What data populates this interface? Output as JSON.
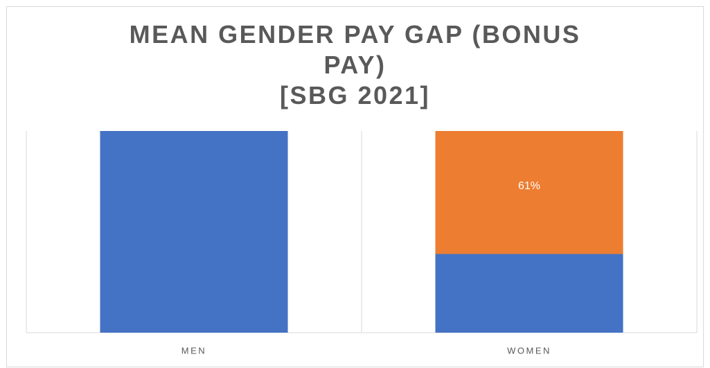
{
  "chart_data": {
    "type": "bar",
    "stacked": true,
    "title": "MEAN GENDER PAY GAP (BONUS PAY)\n[SBG 2021]",
    "categories": [
      "MEN",
      "WOMEN"
    ],
    "series": [
      {
        "color": "#4472c4",
        "values": [
          100,
          39
        ]
      },
      {
        "color": "#ed7d31",
        "values": [
          0,
          61
        ],
        "value_labels": [
          null,
          "61%"
        ]
      }
    ],
    "ylim": [
      0,
      100
    ]
  }
}
